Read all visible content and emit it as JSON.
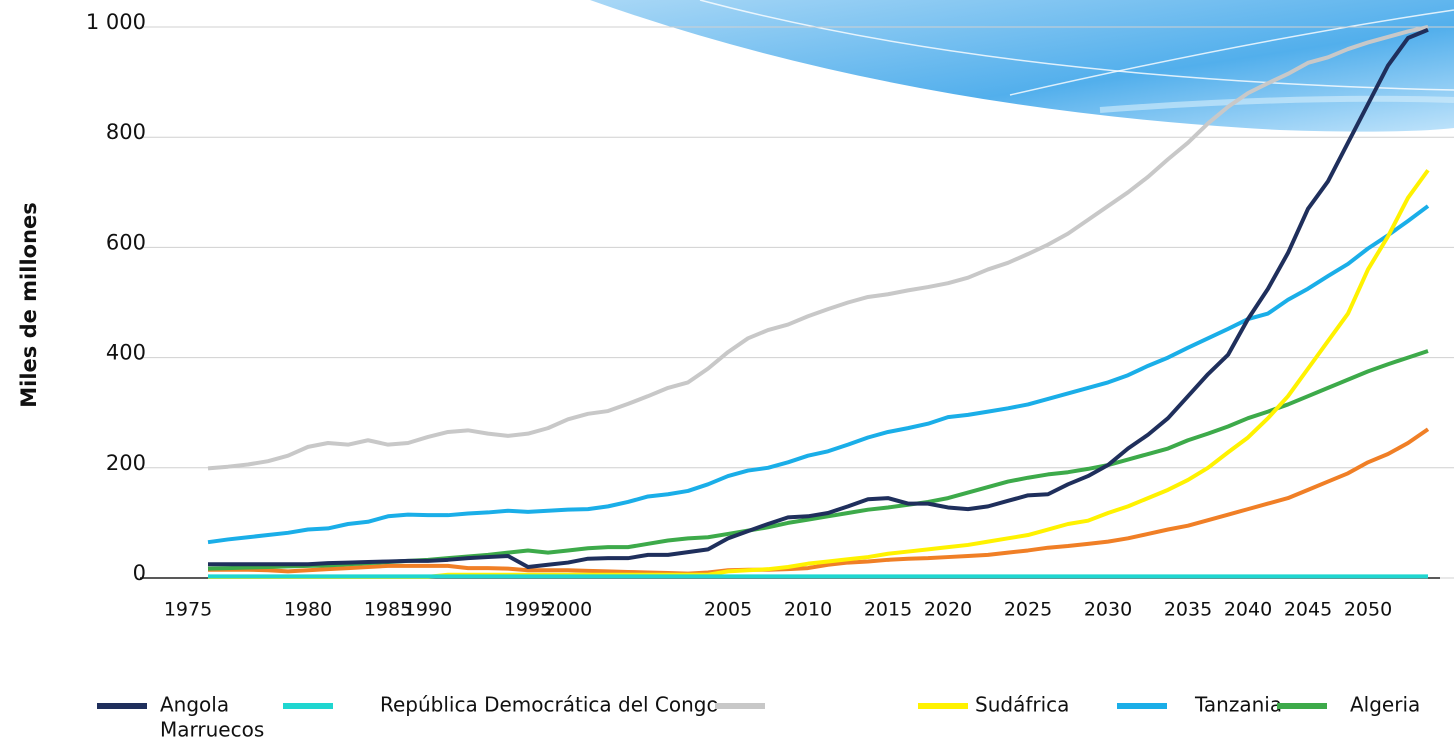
{
  "chart_data": {
    "type": "line",
    "y_label": "Miles de millones",
    "ylim": [
      0,
      1000
    ],
    "yticks": [
      0,
      200,
      400,
      600,
      800,
      {
        "value": 1000,
        "label": "1 000"
      }
    ],
    "grid": true,
    "categories": [
      "1975",
      null,
      null,
      null,
      null,
      null,
      "1980",
      null,
      null,
      null,
      "1985",
      null,
      "1990",
      null,
      null,
      null,
      null,
      "1995",
      null,
      "2000",
      null,
      null,
      null,
      null,
      null,
      null,
      null,
      "2005",
      null,
      null,
      null,
      "2010",
      null,
      null,
      null,
      "2015",
      null,
      null,
      "2020",
      null,
      null,
      null,
      "2025",
      null,
      null,
      null,
      "2030",
      null,
      null,
      null,
      "2035",
      null,
      null,
      "2040",
      null,
      null,
      "2045",
      null,
      null,
      "2050",
      null,
      null,
      null
    ],
    "series": [
      {
        "name": "Angola",
        "color": "#1f2f5c",
        "values": [
          null,
          25,
          25,
          25,
          25,
          25,
          25,
          27,
          28,
          29,
          30,
          31,
          31,
          33,
          36,
          38,
          40,
          20,
          24,
          28,
          35,
          36,
          36,
          42,
          42,
          47,
          52,
          72,
          85,
          98,
          110,
          112,
          118,
          130,
          143,
          145,
          135,
          135,
          128,
          125,
          130,
          140,
          150,
          152,
          170,
          185,
          205,
          235,
          260,
          290,
          330,
          370,
          405,
          470,
          525,
          590,
          670,
          720,
          790,
          860,
          930,
          980,
          995
        ]
      },
      {
        "name": "República Democrática del Congo",
        "color": "#1fd6d0",
        "values": [
          null,
          3,
          3,
          3,
          3,
          3,
          3,
          3,
          3,
          3,
          3,
          3,
          3,
          3,
          3,
          3,
          3,
          3,
          3,
          3,
          3,
          3,
          3,
          3,
          3,
          3,
          3,
          3,
          3,
          3,
          3,
          3,
          3,
          3,
          3,
          3,
          3,
          3,
          3,
          3,
          3,
          3,
          3,
          3,
          3,
          3,
          3,
          3,
          3,
          3,
          3,
          3,
          3,
          3,
          3,
          3,
          3,
          3,
          3,
          3,
          3,
          3,
          3
        ]
      },
      {
        "color": "#c8c8c8",
        "values": [
          null,
          199,
          202,
          206,
          212,
          222,
          238,
          245,
          242,
          250,
          242,
          245,
          256,
          265,
          268,
          262,
          258,
          262,
          272,
          288,
          298,
          303,
          316,
          330,
          345,
          355,
          380,
          410,
          435,
          450,
          460,
          475,
          488,
          500,
          510,
          515,
          522,
          528,
          535,
          545,
          560,
          572,
          588,
          605,
          625,
          650,
          675,
          700,
          728,
          760,
          790,
          825,
          855,
          880,
          898,
          915,
          935,
          945,
          960,
          972,
          982,
          992,
          1000
        ]
      },
      {
        "name": "Sudáfrica",
        "color": "#fff200",
        "values": [
          null,
          2,
          2,
          2,
          2,
          2,
          2,
          2,
          2,
          2,
          2,
          2,
          2,
          6,
          6,
          6,
          6,
          6,
          6,
          6,
          6,
          6,
          6,
          6,
          6,
          6,
          6,
          12,
          14,
          16,
          20,
          26,
          30,
          34,
          38,
          44,
          48,
          52,
          56,
          60,
          66,
          72,
          78,
          88,
          98,
          104,
          118,
          130,
          145,
          160,
          178,
          200,
          228,
          255,
          290,
          330,
          380,
          430,
          480,
          560,
          620,
          690,
          740
        ]
      },
      {
        "name": "Tanzania",
        "color": "#1aaee8",
        "values": [
          null,
          65,
          70,
          74,
          78,
          82,
          88,
          90,
          98,
          102,
          112,
          115,
          114,
          114,
          117,
          119,
          122,
          120,
          122,
          124,
          125,
          130,
          138,
          148,
          152,
          158,
          170,
          185,
          195,
          200,
          210,
          222,
          230,
          242,
          255,
          265,
          272,
          280,
          292,
          296,
          302,
          308,
          315,
          325,
          335,
          345,
          355,
          368,
          385,
          400,
          418,
          435,
          452,
          470,
          480,
          505,
          525,
          548,
          570,
          598,
          622,
          648,
          675
        ]
      },
      {
        "name": "Algeria",
        "color": "#3daa4a",
        "values": [
          null,
          17,
          18,
          19,
          20,
          21,
          22,
          23,
          25,
          27,
          29,
          31,
          33,
          36,
          39,
          42,
          46,
          50,
          46,
          50,
          54,
          56,
          56,
          62,
          68,
          72,
          74,
          80,
          86,
          92,
          100,
          106,
          112,
          118,
          124,
          128,
          133,
          138,
          145,
          155,
          165,
          175,
          182,
          188,
          192,
          198,
          205,
          215,
          225,
          235,
          250,
          262,
          275,
          290,
          302,
          315,
          330,
          345,
          360,
          375,
          388,
          400,
          412
        ]
      },
      {
        "name": "Marruecos",
        "color": "#f07f26",
        "values": [
          null,
          15,
          15,
          15,
          14,
          12,
          14,
          16,
          18,
          20,
          22,
          22,
          22,
          22,
          18,
          18,
          17,
          14,
          14,
          14,
          13,
          12,
          11,
          10,
          9,
          8,
          10,
          14,
          15,
          15,
          16,
          18,
          24,
          28,
          30,
          33,
          35,
          36,
          38,
          40,
          42,
          46,
          50,
          55,
          58,
          62,
          66,
          72,
          80,
          88,
          95,
          105,
          115,
          125,
          135,
          145,
          160,
          175,
          190,
          210,
          225,
          245,
          270
        ]
      }
    ]
  }
}
